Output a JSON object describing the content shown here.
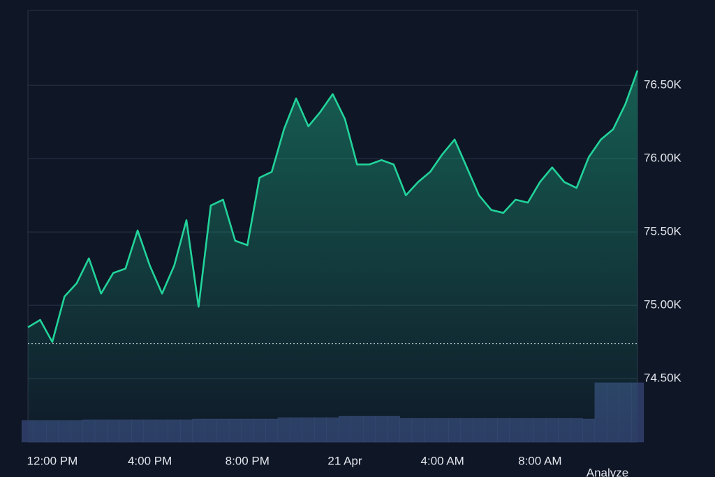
{
  "chart_data": {
    "type": "area",
    "categories": [
      null,
      null,
      "12:00 PM",
      null,
      null,
      null,
      null,
      null,
      null,
      null,
      "4:00 PM",
      null,
      null,
      null,
      null,
      null,
      null,
      null,
      "8:00 PM",
      null,
      null,
      null,
      null,
      null,
      null,
      null,
      "21 Apr",
      null,
      null,
      null,
      null,
      null,
      null,
      null,
      "4:00 AM",
      null,
      null,
      null,
      null,
      null,
      null,
      null,
      "8:00 AM",
      null,
      null,
      null,
      null,
      null,
      null,
      null,
      null
    ],
    "series": [
      {
        "color": "#22d39a",
        "values": [
          74850,
          74900,
          74750,
          75060,
          75150,
          75320,
          75080,
          75220,
          75250,
          75510,
          75270,
          75080,
          75270,
          75580,
          74990,
          75680,
          75720,
          75440,
          75410,
          75870,
          75910,
          76200,
          76410,
          76220,
          76320,
          76440,
          76270,
          75960,
          75960,
          75990,
          75960,
          75750,
          75840,
          75910,
          76030,
          76130,
          75940,
          75750,
          75650,
          75630,
          75720,
          75700,
          75840,
          75940,
          75840,
          75800,
          76010,
          76130,
          76200,
          76370,
          76600
        ]
      }
    ],
    "below_color": "#e5484d",
    "reference_line": 74740,
    "volume": [
      31,
      31,
      31,
      31,
      31,
      32,
      32,
      32,
      32,
      32,
      32,
      32,
      32,
      32,
      33,
      33,
      33,
      33,
      33,
      33,
      33,
      35,
      35,
      35,
      35,
      35,
      37,
      37,
      37,
      37,
      37,
      34,
      34,
      34,
      34,
      34,
      34,
      34,
      34,
      34,
      34,
      34,
      34,
      34,
      34,
      34,
      33,
      85,
      85,
      85,
      85
    ],
    "volume_color": "#2c3a63",
    "ylim": [
      74067,
      77010
    ],
    "yticks": [
      {
        "value": 74500,
        "label": "74.50K"
      },
      {
        "value": 75000,
        "label": "75.00K"
      },
      {
        "value": 75500,
        "label": "75.50K"
      },
      {
        "value": 76000,
        "label": "76.00K"
      },
      {
        "value": 76500,
        "label": "76.50K"
      }
    ],
    "grid": true,
    "button": "Analyze"
  }
}
